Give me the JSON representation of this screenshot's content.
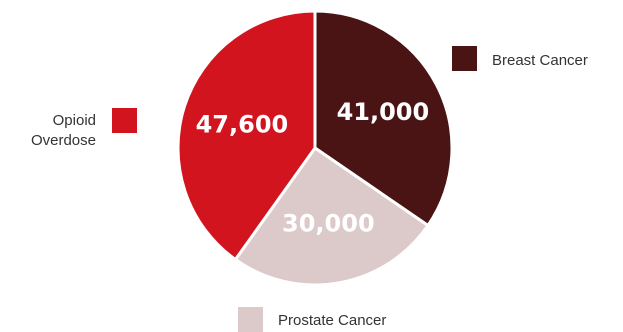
{
  "chart_data": {
    "type": "pie",
    "title": "",
    "slices": [
      {
        "name": "Breast Cancer",
        "value": 41000,
        "label": "41,000",
        "color": "#4a1414"
      },
      {
        "name": "Prostate Cancer",
        "value": 30000,
        "label": "30,000",
        "color": "#dccaca"
      },
      {
        "name": "Opioid Overdose",
        "value": 47600,
        "label": "47,600",
        "color": "#d2141e"
      }
    ],
    "legend": [
      {
        "lines": [
          "Breast Cancer"
        ],
        "color": "#4a1414",
        "placement": "right"
      },
      {
        "lines": [
          "Prostate Cancer"
        ],
        "color": "#dccaca",
        "placement": "bottom"
      },
      {
        "lines": [
          "Opioid",
          "Overdose"
        ],
        "color": "#d2141e",
        "placement": "left"
      }
    ]
  }
}
